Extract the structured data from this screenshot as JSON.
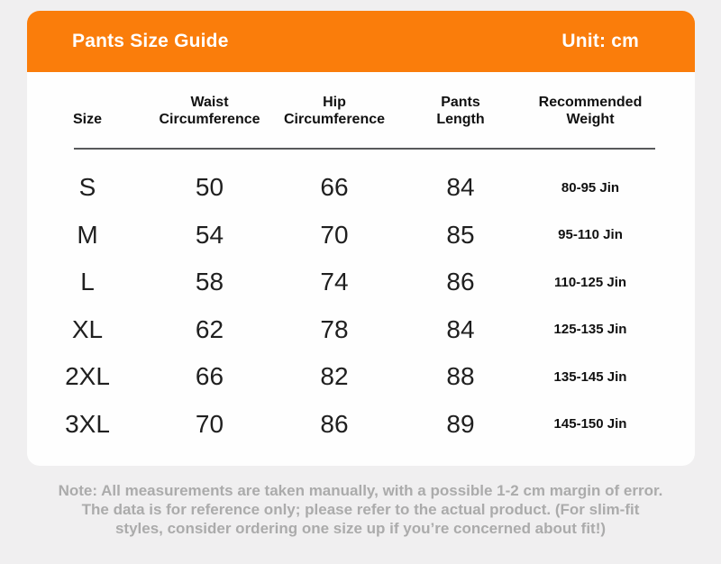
{
  "colors": {
    "accent": "#fa7d0b",
    "page_bg": "#f0eff0",
    "card_bg": "#fefefe",
    "header_text": "#ffffff",
    "heading_text": "#111111",
    "body_text": "#1f1f1f",
    "divider": "#58595b",
    "note_color": "#ababab"
  },
  "header": {
    "title": "Pants Size Guide",
    "unit_label": "Unit: cm"
  },
  "table": {
    "columns": [
      "Size",
      "Waist Circumference",
      "Hip Circumference",
      "Pants Length",
      "Recommended Weight"
    ],
    "rows": [
      {
        "size": "S",
        "waist": "50",
        "hip": "66",
        "length": "84",
        "weight": "80-95 Jin"
      },
      {
        "size": "M",
        "waist": "54",
        "hip": "70",
        "length": "85",
        "weight": "95-110 Jin"
      },
      {
        "size": "L",
        "waist": "58",
        "hip": "74",
        "length": "86",
        "weight": "110-125 Jin"
      },
      {
        "size": "XL",
        "waist": "62",
        "hip": "78",
        "length": "84",
        "weight": "125-135 Jin"
      },
      {
        "size": "2XL",
        "waist": "66",
        "hip": "82",
        "length": "88",
        "weight": "135-145 Jin"
      },
      {
        "size": "3XL",
        "waist": "70",
        "hip": "86",
        "length": "89",
        "weight": "145-150 Jin"
      }
    ]
  },
  "note": {
    "lines": [
      "Note: All measurements are taken manually, with a possible 1-2 cm margin of error.",
      "The data is for reference only; please refer to the actual product. (For slim-fit",
      "styles, consider ordering one size up if you’re concerned about fit!)"
    ]
  }
}
